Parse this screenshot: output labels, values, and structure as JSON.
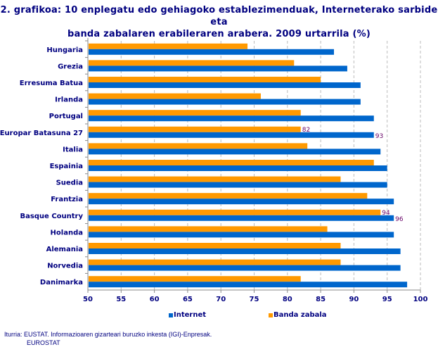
{
  "title_line1": "2. grafikoa: 10 enplegatu edo gehiagoko establezimenduak, Interneterako sarbide eta",
  "title_line2": "banda zabalaren erabileraren arabera. 2009 urtarrila (%)",
  "source_line1": "Iturria: EUSTAT. Informazioaren gizarteari buruzko inkesta (IGI)-Enpresak.",
  "source_line2": "EUROSTAT",
  "chart_data": {
    "type": "bar",
    "orientation": "horizontal",
    "categories": [
      "Hungaria",
      "Grezia",
      "Erresuma Batua",
      "Irlanda",
      "Portugal",
      "Europar Batasuna 27",
      "Italia",
      "Espainia",
      "Suedia",
      "Frantzia",
      "Basque Country",
      "Holanda",
      "Alemania",
      "Norvedia",
      "Danimarka"
    ],
    "series": [
      {
        "name": "Internet",
        "color": "#0066CC",
        "values": [
          87,
          89,
          91,
          91,
          93,
          93,
          94,
          95,
          95,
          96,
          96,
          96,
          97,
          97,
          98
        ]
      },
      {
        "name": "Banda zabala",
        "color": "#FF9900",
        "values": [
          74,
          81,
          85,
          76,
          82,
          82,
          83,
          93,
          88,
          92,
          94,
          86,
          88,
          88,
          82
        ]
      }
    ],
    "data_labels": [
      {
        "category": "Europar Batasuna 27",
        "series": "Banda zabala",
        "text": "82"
      },
      {
        "category": "Europar Batasuna 27",
        "series": "Internet",
        "text": "93"
      },
      {
        "category": "Basque Country",
        "series": "Banda zabala",
        "text": "94"
      },
      {
        "category": "Basque Country",
        "series": "Internet",
        "text": "96"
      }
    ],
    "xlim": [
      50,
      100
    ],
    "xticks": [
      "50",
      "55",
      "60",
      "65",
      "70",
      "75",
      "80",
      "85",
      "90",
      "95",
      "100"
    ],
    "grid": "vertical dashed",
    "legend": "bottom"
  }
}
